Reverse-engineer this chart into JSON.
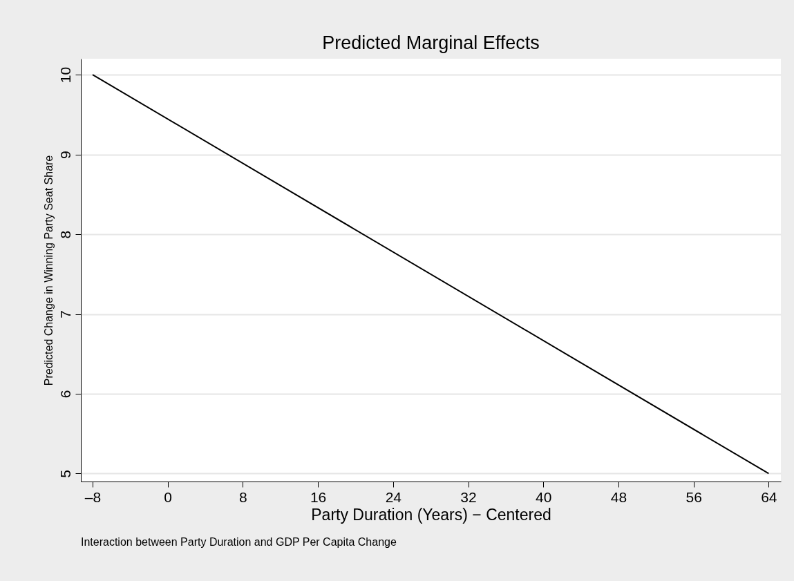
{
  "chart_data": {
    "type": "line",
    "title": "Predicted Marginal Effects",
    "xlabel": "Party Duration (Years) − Centered",
    "ylabel": "Predicted Change in Winning Party Seat Share",
    "annotations": [
      "Interaction between Party Duration and GDP Per Capita Change"
    ],
    "x": [
      -8,
      64
    ],
    "series": [
      {
        "color": "#000000",
        "values": [
          10,
          5
        ]
      }
    ],
    "xlim": [
      -9.25,
      65.3
    ],
    "ylim": [
      4.9,
      10.2
    ],
    "xticks": [
      {
        "value": -8,
        "label": "–8"
      },
      0,
      8,
      16,
      24,
      32,
      40,
      48,
      56,
      64
    ],
    "yticks": [
      5,
      6,
      7,
      8,
      9,
      10
    ],
    "grid": "y",
    "marker": "none",
    "line_style": "solid"
  }
}
